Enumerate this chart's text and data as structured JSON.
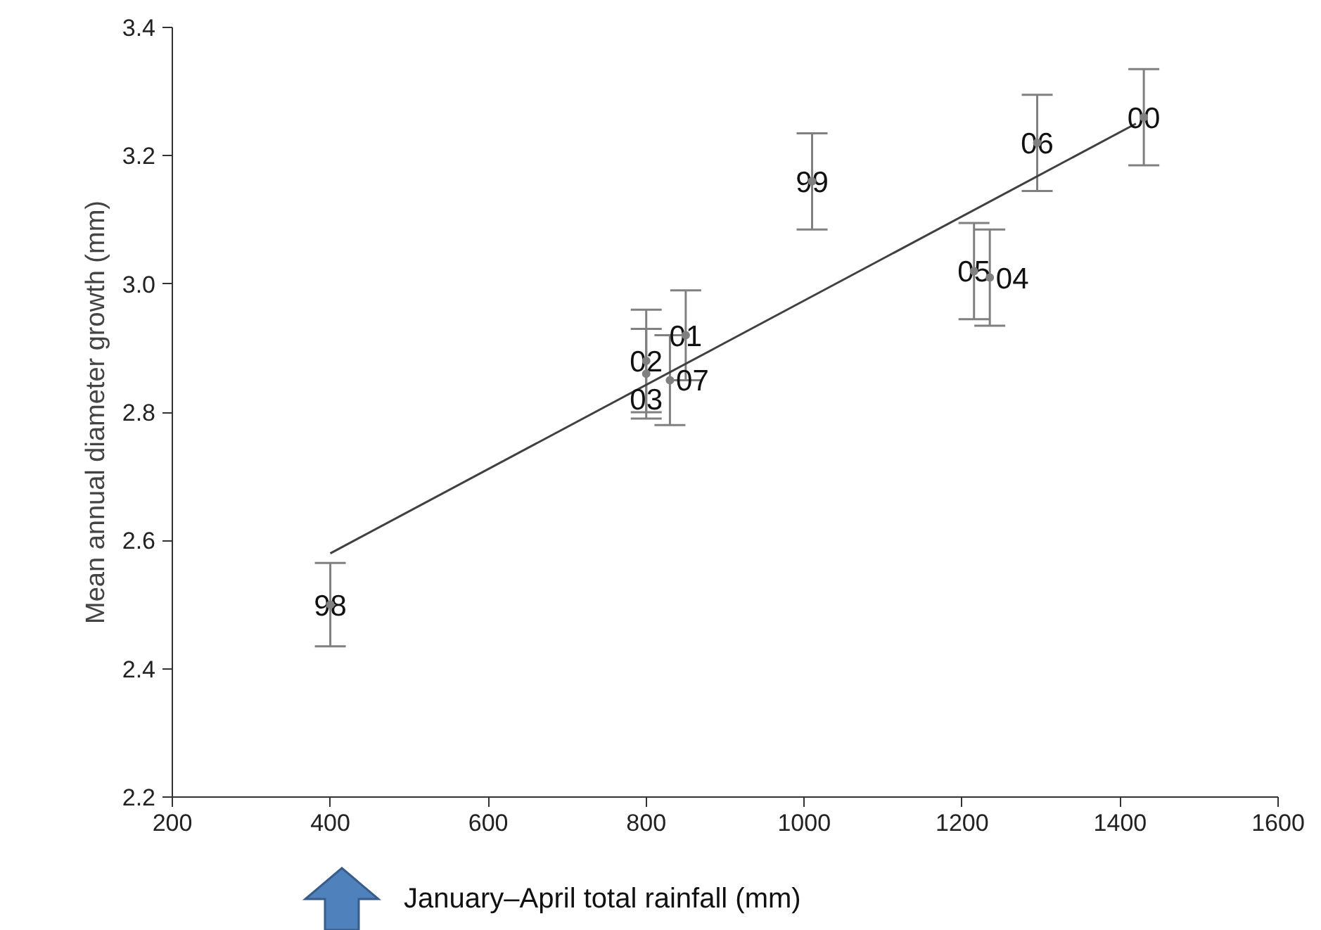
{
  "chart_data": {
    "type": "scatter",
    "xlabel": "January–April total rainfall (mm)",
    "ylabel": "Mean annual diameter growth (mm)",
    "xlim": [
      200,
      1600
    ],
    "xticks": [
      200,
      400,
      600,
      800,
      1000,
      1200,
      1400,
      1600
    ],
    "ylim": [
      2.2,
      3.4
    ],
    "yticks": [
      {
        "value": 2.2,
        "label": "2.2"
      },
      {
        "value": 2.4,
        "label": "2.4"
      },
      {
        "value": 2.6,
        "label": "2.6"
      },
      {
        "value": 2.8,
        "label": "2.8"
      },
      {
        "value": 3.0,
        "label": "3.0"
      },
      {
        "value": 3.2,
        "label": "3.2"
      },
      {
        "value": 3.4,
        "label": "3.4"
      }
    ],
    "grid": false,
    "series": [
      {
        "marker": "circle",
        "color": "#808080",
        "x": [
          400,
          800,
          800,
          830,
          850,
          1010,
          1215,
          1235,
          1295,
          1430
        ],
        "values": [
          2.5,
          2.88,
          2.86,
          2.85,
          2.92,
          3.16,
          3.02,
          3.01,
          3.22,
          3.26
        ],
        "errors": [
          0.065,
          0.08,
          0.07,
          0.07,
          0.07,
          0.075,
          0.075,
          0.075,
          0.075,
          0.075
        ]
      },
      {
        "type": "line",
        "color": "#404040",
        "x": [
          400,
          1420
        ],
        "values": [
          2.58,
          3.25
        ]
      }
    ],
    "annotations": [
      {
        "text": "98",
        "x": 400,
        "y": 2.5
      },
      {
        "text": "02",
        "x": 800,
        "y": 2.88
      },
      {
        "text": "03",
        "x": 800,
        "y": 2.86
      },
      {
        "text": "07",
        "x": 830,
        "y": 2.85
      },
      {
        "text": "01",
        "x": 850,
        "y": 2.92
      },
      {
        "text": "99",
        "x": 1010,
        "y": 3.16
      },
      {
        "text": "05",
        "x": 1215,
        "y": 3.02
      },
      {
        "text": "04",
        "x": 1235,
        "y": 3.01
      },
      {
        "text": "06",
        "x": 1295,
        "y": 3.22
      },
      {
        "text": "00",
        "x": 1430,
        "y": 3.26
      }
    ]
  }
}
